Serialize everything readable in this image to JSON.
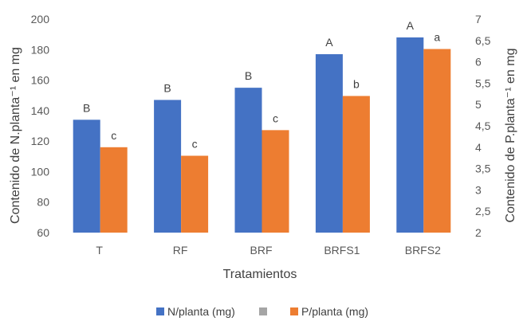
{
  "chart_data": {
    "type": "bar",
    "categories": [
      "T",
      "RF",
      "BRF",
      "BRFS1",
      "BRFS2"
    ],
    "xlabel": "Tratamientos",
    "ylabel_left": "Contenido de N.planta⁻¹ en mg",
    "ylabel_right": "Contenido de P.planta⁻¹ en mg",
    "ylim_left": [
      60,
      200
    ],
    "yticks_left": [
      "60",
      "80",
      "100",
      "120",
      "140",
      "160",
      "180",
      "200"
    ],
    "ylim_right": [
      2,
      7
    ],
    "yticks_right": [
      "2",
      "2,5",
      "3",
      "3,5",
      "4",
      "4,5",
      "5",
      "5,5",
      "6",
      "6,5",
      "7"
    ],
    "grid": false,
    "legend_position": "bottom",
    "series": [
      {
        "name": "N/planta (mg)",
        "axis": "left",
        "color": "#4472C4",
        "values": [
          134,
          147,
          155,
          177,
          188
        ],
        "labels": [
          "B",
          "B",
          "B",
          "A",
          "A"
        ]
      },
      {
        "name": "P/planta (mg)",
        "axis": "right",
        "color": "#ED7D31",
        "values": [
          4.0,
          3.8,
          4.4,
          5.2,
          6.3
        ],
        "labels": [
          "c",
          "c",
          "c",
          "b",
          "a"
        ]
      }
    ],
    "legend": [
      {
        "name": "N/planta (mg)",
        "color": "#4472C4"
      },
      {
        "name": "",
        "color": "#A5A5A5"
      },
      {
        "name": "P/planta (mg)",
        "color": "#ED7D31"
      }
    ]
  }
}
